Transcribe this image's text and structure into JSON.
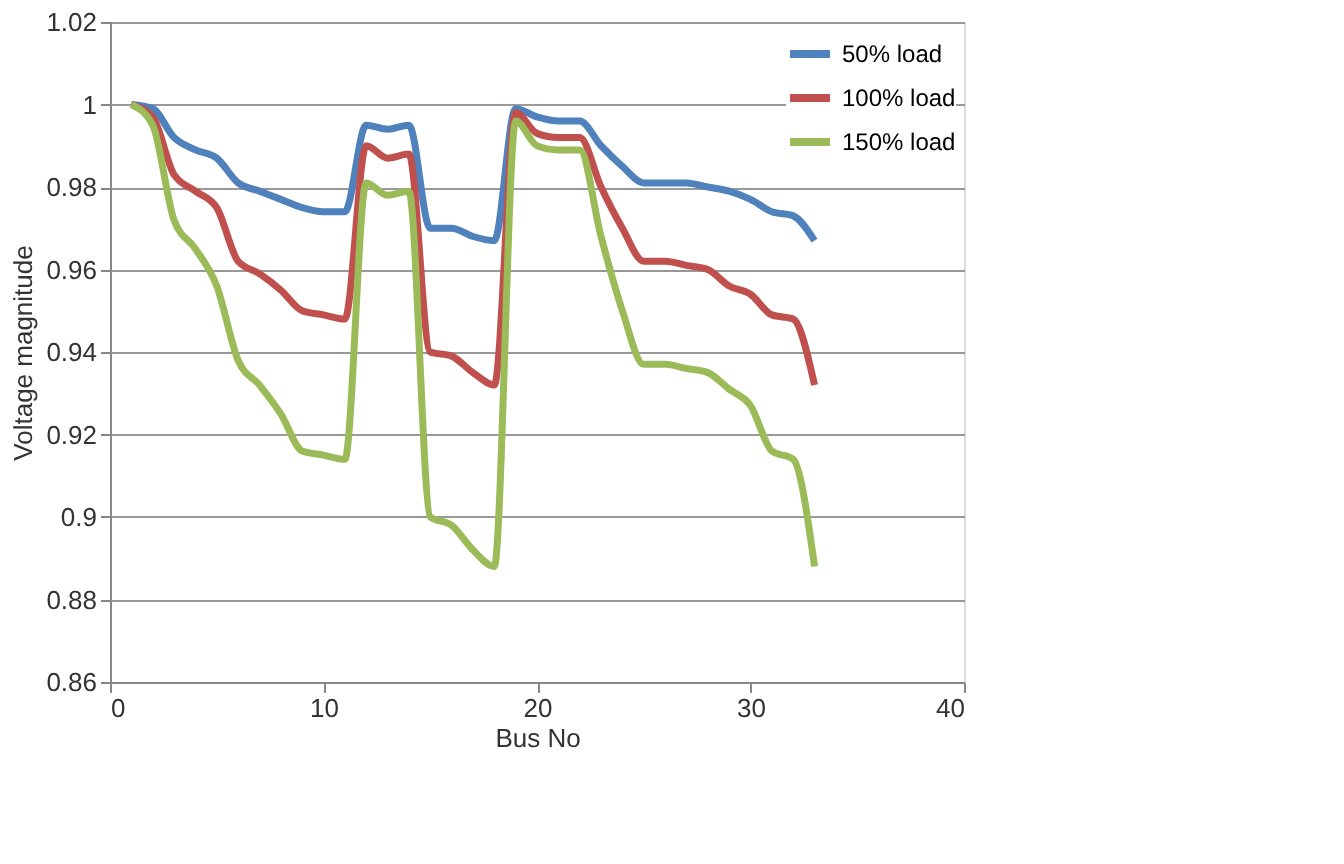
{
  "chart_data": {
    "type": "line",
    "xlabel": "Bus No",
    "ylabel": "Voltage magnitude",
    "x": [
      1,
      2,
      3,
      4,
      5,
      6,
      7,
      8,
      9,
      10,
      11,
      12,
      13,
      14,
      15,
      16,
      17,
      18,
      19,
      20,
      21,
      22,
      23,
      24,
      25,
      26,
      27,
      28,
      29,
      30,
      31,
      32,
      33
    ],
    "series": [
      {
        "name": "50% load",
        "color": "#4f81bd",
        "values": [
          1.0,
          0.999,
          0.992,
          0.989,
          0.987,
          0.981,
          0.979,
          0.977,
          0.975,
          0.974,
          0.974,
          0.995,
          0.994,
          0.995,
          0.97,
          0.97,
          0.968,
          0.967,
          0.999,
          0.997,
          0.996,
          0.996,
          0.99,
          0.985,
          0.981,
          0.981,
          0.981,
          0.98,
          0.979,
          0.977,
          0.974,
          0.973,
          0.967
        ]
      },
      {
        "name": "100% load",
        "color": "#c0504d",
        "values": [
          1.0,
          0.997,
          0.983,
          0.979,
          0.975,
          0.962,
          0.959,
          0.955,
          0.95,
          0.949,
          0.948,
          0.99,
          0.987,
          0.988,
          0.94,
          0.939,
          0.935,
          0.932,
          0.998,
          0.993,
          0.992,
          0.992,
          0.98,
          0.97,
          0.962,
          0.962,
          0.961,
          0.96,
          0.956,
          0.954,
          0.949,
          0.948,
          0.932
        ]
      },
      {
        "name": "150% load",
        "color": "#9bbb59",
        "values": [
          1.0,
          0.995,
          0.972,
          0.965,
          0.956,
          0.938,
          0.932,
          0.925,
          0.916,
          0.915,
          0.914,
          0.981,
          0.978,
          0.979,
          0.9,
          0.898,
          0.892,
          0.888,
          0.996,
          0.99,
          0.989,
          0.989,
          0.968,
          0.95,
          0.937,
          0.937,
          0.936,
          0.935,
          0.931,
          0.927,
          0.916,
          0.914,
          0.888
        ]
      }
    ],
    "xlim": [
      0,
      40
    ],
    "xticks": [
      0,
      10,
      20,
      30,
      40
    ],
    "ylim": [
      0.86,
      1.02
    ],
    "yticks": [
      0.86,
      0.88,
      0.9,
      0.92,
      0.94,
      0.96,
      0.98,
      1,
      1.02
    ],
    "grid": "y",
    "legend": "top right",
    "line_style": "solid",
    "marker": "none"
  }
}
